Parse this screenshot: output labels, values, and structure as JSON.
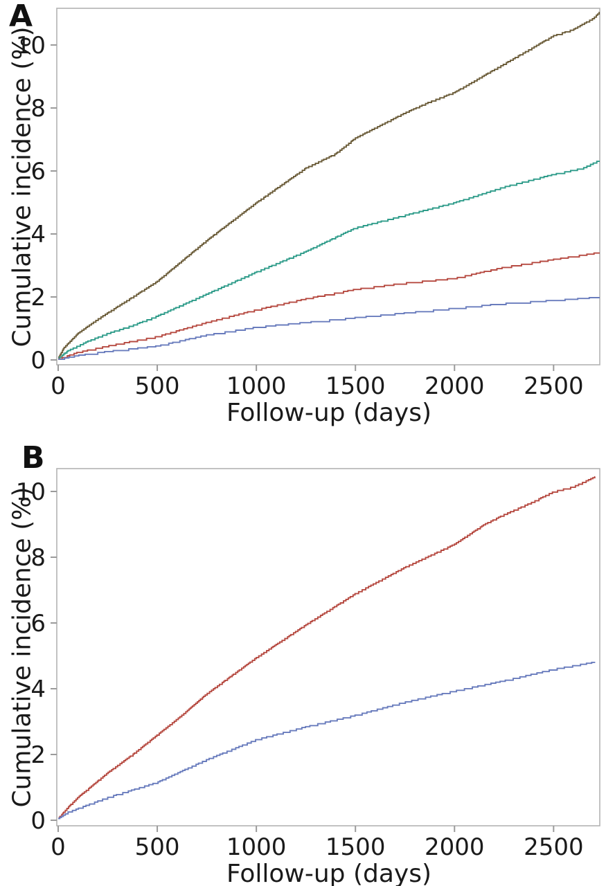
{
  "figure": {
    "background": "#ffffff",
    "axis_color": "#b2b2b2",
    "tick_color": "#9a9a9a",
    "text_color": "#1a1a1a"
  },
  "chart_data": [
    {
      "type": "line",
      "panel": "A",
      "subtype": "cumulative-incidence-step-curves",
      "xlabel": "Follow-up (days)",
      "ylabel": "Cumulative incidence (%)",
      "xlim": [
        0,
        2733
      ],
      "ylim": [
        0,
        11.2
      ],
      "xticks": [
        0,
        500,
        1000,
        1500,
        2000,
        2500
      ],
      "yticks": [
        0,
        2,
        4,
        6,
        8,
        10
      ],
      "grid": false,
      "legend": "none",
      "series": [
        {
          "name": "curve-brown",
          "color": "#6b5c39",
          "x": [
            0,
            30,
            100,
            200,
            300,
            400,
            500,
            625,
            750,
            875,
            1000,
            1125,
            1250,
            1400,
            1500,
            1625,
            1750,
            1875,
            2000,
            2125,
            2250,
            2375,
            2500,
            2600,
            2700,
            2733
          ],
          "y": [
            0.05,
            0.4,
            0.85,
            1.3,
            1.7,
            2.1,
            2.5,
            3.15,
            3.8,
            4.4,
            5.0,
            5.55,
            6.1,
            6.55,
            7.05,
            7.45,
            7.85,
            8.2,
            8.5,
            8.95,
            9.4,
            9.85,
            10.3,
            10.5,
            10.85,
            11.05
          ]
        },
        {
          "name": "curve-teal",
          "color": "#2f9c8a",
          "x": [
            0,
            50,
            150,
            250,
            375,
            500,
            625,
            750,
            875,
            1000,
            1250,
            1500,
            1750,
            2000,
            2250,
            2500,
            2650,
            2733
          ],
          "y": [
            0.05,
            0.3,
            0.6,
            0.85,
            1.1,
            1.4,
            1.75,
            2.1,
            2.45,
            2.8,
            3.45,
            4.2,
            4.6,
            5.0,
            5.5,
            5.9,
            6.1,
            6.35
          ]
        },
        {
          "name": "curve-red",
          "color": "#b64a41",
          "x": [
            0,
            100,
            250,
            500,
            750,
            1000,
            1250,
            1500,
            1750,
            2000,
            2250,
            2500,
            2733
          ],
          "y": [
            0.03,
            0.25,
            0.45,
            0.75,
            1.2,
            1.6,
            1.95,
            2.25,
            2.45,
            2.6,
            2.95,
            3.2,
            3.42
          ]
        },
        {
          "name": "curve-blue",
          "color": "#697cbd",
          "x": [
            0,
            100,
            250,
            500,
            750,
            1000,
            1250,
            1500,
            1750,
            2000,
            2250,
            2500,
            2733
          ],
          "y": [
            0.02,
            0.15,
            0.28,
            0.45,
            0.8,
            1.05,
            1.2,
            1.35,
            1.5,
            1.65,
            1.8,
            1.9,
            2.0
          ]
        }
      ]
    },
    {
      "type": "line",
      "panel": "B",
      "subtype": "cumulative-incidence-step-curves",
      "xlabel": "Follow-up (days)",
      "ylabel": "Cumulative incidence (%)",
      "xlim": [
        0,
        2733
      ],
      "ylim": [
        0,
        10.7
      ],
      "xticks": [
        0,
        500,
        1000,
        1500,
        2000,
        2500
      ],
      "yticks": [
        0,
        2,
        4,
        6,
        8,
        10
      ],
      "grid": false,
      "legend": "none",
      "series": [
        {
          "name": "curve-red",
          "color": "#b64a41",
          "x": [
            0,
            50,
            100,
            250,
            375,
            500,
            625,
            750,
            875,
            1000,
            1250,
            1500,
            1750,
            2000,
            2150,
            2250,
            2400,
            2500,
            2600,
            2710
          ],
          "y": [
            0.05,
            0.4,
            0.7,
            1.45,
            2.0,
            2.6,
            3.2,
            3.85,
            4.4,
            4.95,
            5.95,
            6.9,
            7.7,
            8.4,
            9.0,
            9.3,
            9.7,
            10.0,
            10.15,
            10.45
          ]
        },
        {
          "name": "curve-blue",
          "color": "#697cbd",
          "x": [
            0,
            50,
            250,
            500,
            750,
            1000,
            1250,
            1500,
            1750,
            2000,
            2250,
            2500,
            2710
          ],
          "y": [
            0.05,
            0.25,
            0.7,
            1.16,
            1.85,
            2.46,
            2.85,
            3.2,
            3.6,
            3.94,
            4.25,
            4.6,
            4.82
          ]
        }
      ]
    }
  ]
}
